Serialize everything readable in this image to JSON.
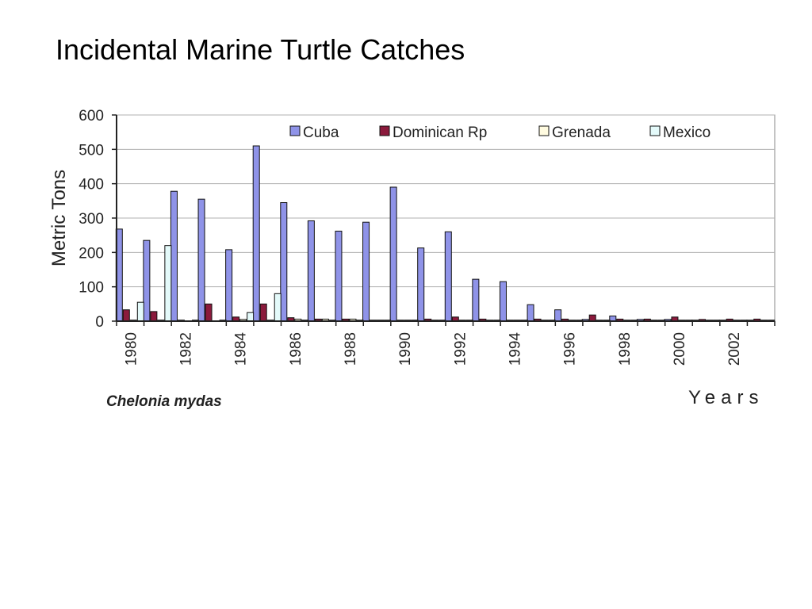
{
  "slide": {
    "title": "Incidental Marine Turtle Catches",
    "species_label": "Chelonia mydas"
  },
  "colors": {
    "Cuba": "#8f93e8",
    "Dominican Rp": "#8b1a3c",
    "Grenada": "#fffbe0",
    "Mexico": "#e4fafa",
    "axis": "#222222",
    "grid": "#b0b0b0"
  },
  "chart_data": {
    "type": "bar",
    "title": "",
    "xlabel": "Years",
    "ylabel": "Metric Tons",
    "ylim": [
      0,
      600
    ],
    "yticks": [
      0,
      100,
      200,
      300,
      400,
      500,
      600
    ],
    "grid": true,
    "legend_position": "top-right",
    "categories": [
      "1980",
      "1981",
      "1982",
      "1983",
      "1984",
      "1985",
      "1986",
      "1987",
      "1988",
      "1989",
      "1990",
      "1991",
      "1992",
      "1993",
      "1994",
      "1995",
      "1996",
      "1997",
      "1998",
      "1999",
      "2000",
      "2001",
      "2002",
      "2003"
    ],
    "xtick_labels": [
      "1980",
      "1982",
      "1984",
      "1986",
      "1988",
      "1990",
      "1992",
      "1994",
      "1996",
      "1998",
      "2000",
      "2002"
    ],
    "series": [
      {
        "name": "Cuba",
        "values": [
          268,
          235,
          378,
          355,
          208,
          510,
          345,
          292,
          262,
          288,
          390,
          213,
          260,
          122,
          115,
          48,
          33,
          5,
          15,
          5,
          5,
          3,
          3,
          3
        ]
      },
      {
        "name": "Dominican Rp",
        "values": [
          33,
          28,
          3,
          50,
          12,
          50,
          10,
          6,
          6,
          3,
          3,
          6,
          12,
          6,
          3,
          6,
          6,
          18,
          6,
          6,
          12,
          5,
          6,
          6
        ]
      },
      {
        "name": "Grenada",
        "values": [
          3,
          3,
          0,
          0,
          5,
          3,
          6,
          6,
          6,
          3,
          3,
          3,
          3,
          3,
          3,
          3,
          3,
          3,
          3,
          3,
          3,
          3,
          3,
          3
        ]
      },
      {
        "name": "Mexico",
        "values": [
          55,
          220,
          3,
          3,
          25,
          80,
          3,
          3,
          3,
          3,
          3,
          3,
          3,
          3,
          3,
          3,
          3,
          3,
          3,
          3,
          3,
          3,
          3,
          3
        ]
      }
    ]
  }
}
